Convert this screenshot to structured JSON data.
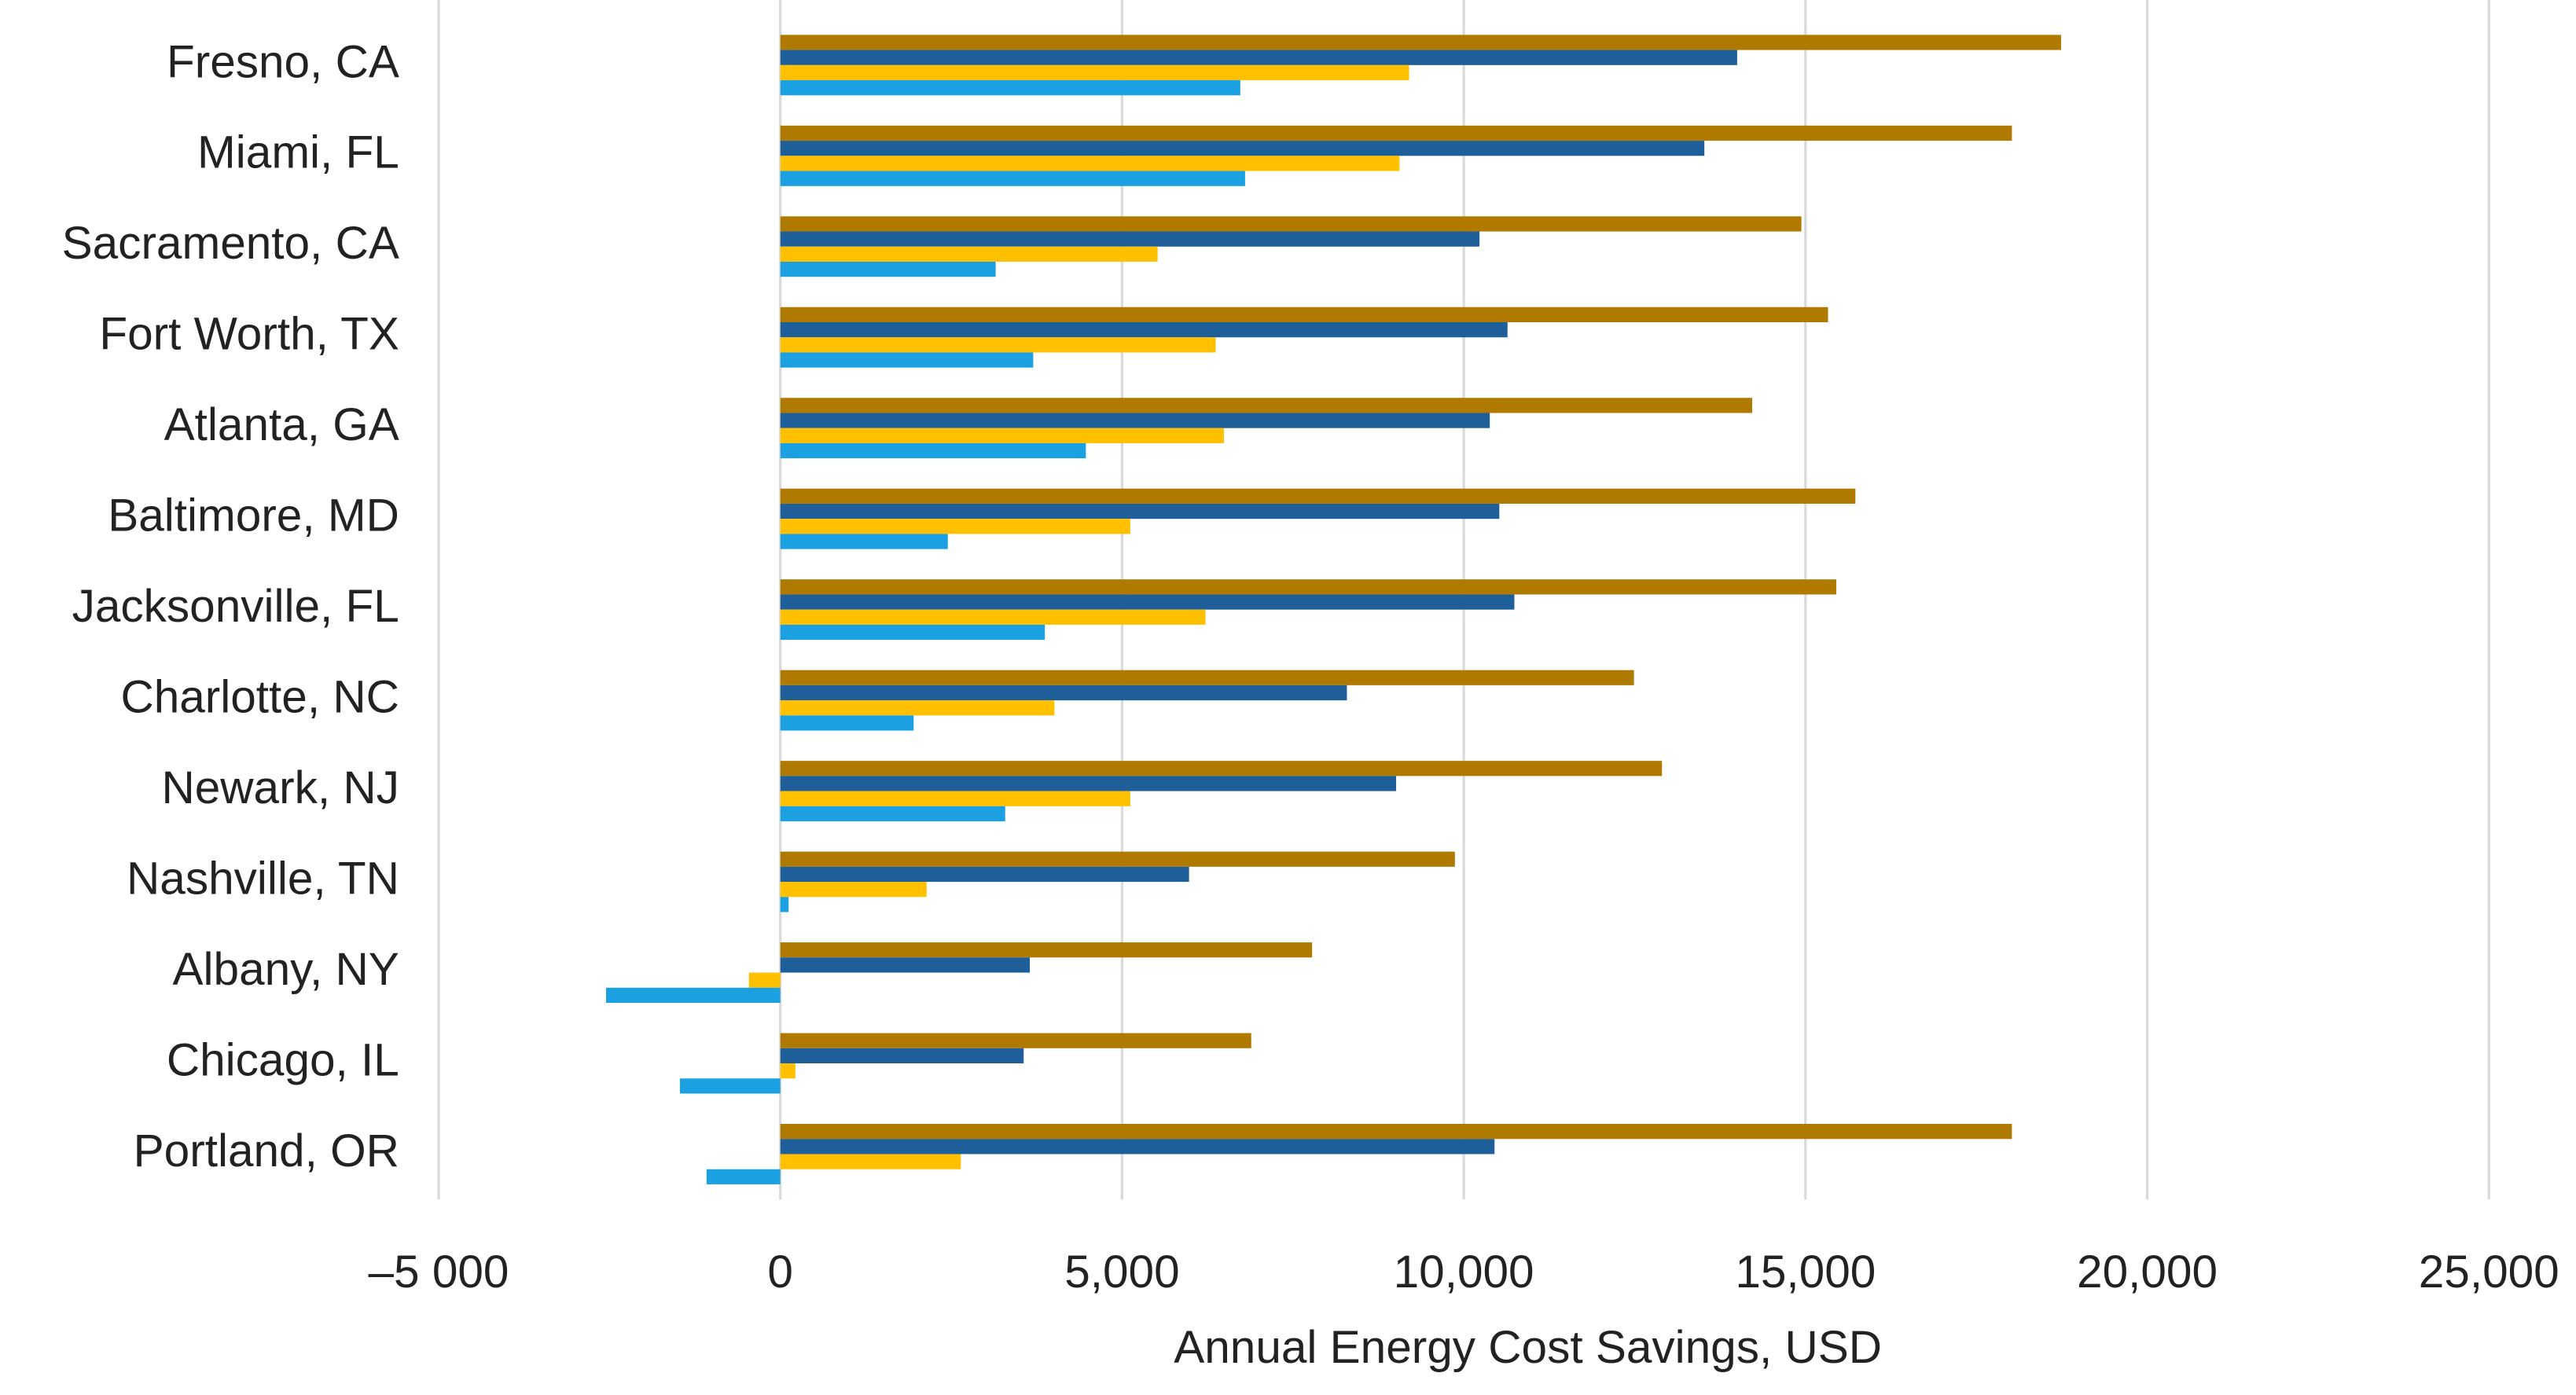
{
  "chart_data": {
    "type": "hbar",
    "x_label": "Annual Energy Cost Savings, USD",
    "categories": [
      "Fresno, CA",
      "Miami, FL",
      "Sacramento, CA",
      "Fort Worth, TX",
      "Atlanta, GA",
      "Baltimore, MD",
      "Jacksonville, FL",
      "Charlotte, NC",
      "Newark, NJ",
      "Nashville, TN",
      "Albany, NY",
      "Chicago, IL",
      "Portland, OR"
    ],
    "series": [
      {
        "color": "#B07A00",
        "values": [
          18740,
          18020,
          14940,
          15330,
          14220,
          15730,
          15450,
          12490,
          12900,
          9870,
          7780,
          6890,
          18020
        ]
      },
      {
        "color": "#1F5F99",
        "values": [
          14000,
          13520,
          10230,
          10640,
          10380,
          10520,
          10740,
          8290,
          9010,
          5980,
          3650,
          3560,
          10450
        ]
      },
      {
        "color": "#FFC000",
        "values": [
          9200,
          9060,
          5520,
          6370,
          6490,
          5120,
          6220,
          4010,
          5120,
          2140,
          -460,
          220,
          2640
        ]
      },
      {
        "color": "#1BA1E2",
        "values": [
          6730,
          6800,
          3150,
          3700,
          4470,
          2450,
          3870,
          1950,
          3290,
          120,
          -2550,
          -1470,
          -1080
        ]
      }
    ],
    "xlim": [
      -5000,
      25000
    ],
    "xticks": [
      {
        "value": -5000,
        "label": "–5 000"
      },
      0,
      {
        "value": 5000,
        "label": "5,000"
      },
      {
        "value": 10000,
        "label": "10,000"
      },
      {
        "value": 15000,
        "label": "15,000"
      },
      {
        "value": 20000,
        "label": "20,000"
      },
      {
        "value": 25000,
        "label": "25,000"
      }
    ],
    "grid": true
  }
}
